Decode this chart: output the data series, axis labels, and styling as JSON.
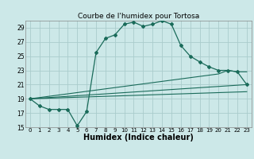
{
  "title": "Courbe de l'humidex pour Tortosa",
  "xlabel": "Humidex (Indice chaleur)",
  "bg_color": "#cce8e8",
  "grid_color": "#aacccc",
  "line_color": "#1a6b5a",
  "xlim": [
    -0.5,
    23.5
  ],
  "ylim": [
    15,
    30
  ],
  "xticks": [
    0,
    1,
    2,
    3,
    4,
    5,
    6,
    7,
    8,
    9,
    10,
    11,
    12,
    13,
    14,
    15,
    16,
    17,
    18,
    19,
    20,
    21,
    22,
    23
  ],
  "yticks": [
    15,
    17,
    19,
    21,
    23,
    25,
    27,
    29
  ],
  "series1_x": [
    0,
    1,
    2,
    3,
    4,
    5,
    6,
    7,
    8,
    9,
    10,
    11,
    12,
    13,
    14,
    15,
    16,
    17,
    18,
    19,
    20,
    21,
    22,
    23
  ],
  "series1_y": [
    19.0,
    18.0,
    17.5,
    17.5,
    17.5,
    15.2,
    17.2,
    25.5,
    27.5,
    28.0,
    29.5,
    29.8,
    29.2,
    29.5,
    30.0,
    29.5,
    26.5,
    25.0,
    24.2,
    23.5,
    23.0,
    23.0,
    22.8,
    21.0
  ],
  "series2_x": [
    0,
    20,
    21,
    22,
    23
  ],
  "series2_y": [
    19.0,
    22.5,
    23.0,
    22.8,
    22.8
  ],
  "series3_x": [
    0,
    23
  ],
  "series3_y": [
    19.0,
    21.0
  ],
  "series4_x": [
    0,
    23
  ],
  "series4_y": [
    19.0,
    20.0
  ],
  "title_fontsize": 6.5,
  "xlabel_fontsize": 7.0,
  "tick_fontsize": 5.0
}
